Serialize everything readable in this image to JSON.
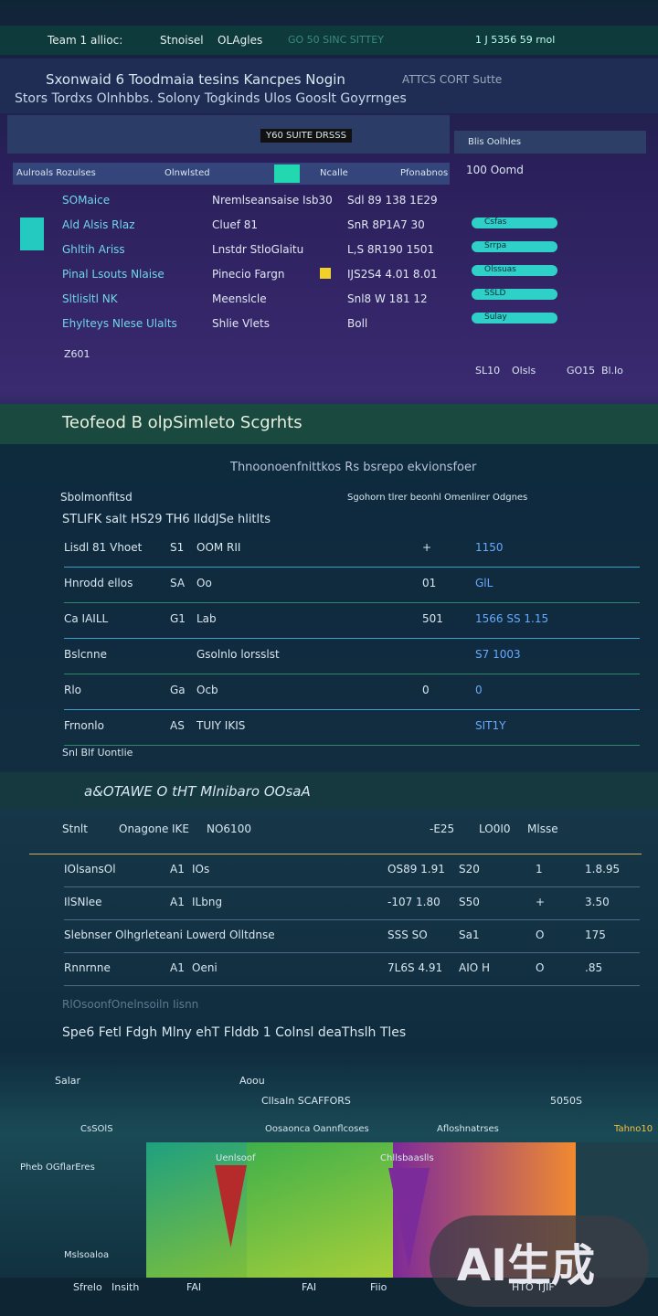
{
  "top_bar": {
    "items": [
      "Team 1 allioc:",
      "Stnoisel",
      "OLAgles",
      "GO 50 SINC SITTEY"
    ],
    "status": "1 J 5356 59 rnol"
  },
  "header": {
    "title": "Sxonwaid 6 Toodmaia tesins Kancpes Nogin",
    "tag": "ATTCS CORT Sutte",
    "subtitle": "Stors Tordxs Olnhbbs. Solony Togkinds Ulos Gooslt Goyrrnges"
  },
  "banner": {
    "label": "Y60 SUITE DRSSS",
    "side_title": "Blis Oolhles"
  },
  "table1": {
    "headers": [
      "Aulroals Rozulses",
      "Olnwlsted",
      "Ncalle",
      "Pfonabnos"
    ],
    "side_header": "100 Oomd",
    "rows": [
      [
        "SOMaice",
        "Nremlseansaise Isb30",
        "Sdl 89 138 1E29"
      ],
      [
        "Ald Alsis Rlaz",
        "Cluef 81",
        "SnR 8P1A7 30"
      ],
      [
        "Ghltih Ariss",
        "Lnstdr StloGlaitu",
        "L,S 8R190 1501"
      ],
      [
        "Pinal Lsouts Nlaise",
        "Pinecio Fargn",
        "IJS2S4 4.01 8.01"
      ],
      [
        "Sltlisltl NK",
        "Meenslcle",
        "Snl8 W 181 12"
      ],
      [
        "Ehylteys Nlese Ulalts",
        "Shlie Vlets",
        "Boll"
      ]
    ],
    "side_rows": [
      "Csfas",
      "Srrpa",
      "Olssuas",
      "SSLD",
      "Sulay"
    ],
    "footer": [
      "Z601",
      "SL10",
      "Olsls",
      "GO15",
      "Bl.lo"
    ]
  },
  "section_band": {
    "title": "Teofeod B olpSimleto Scgrhts"
  },
  "table2": {
    "title": "Thnoonoenfnittkos Rs bsrepo ekvionsfoer",
    "subtitle": "Sbolmonfitsd",
    "right_note": "Sgohorn tlrer beonhl Omenlirer Odgnes",
    "headline": "STLIFK salt HS29 TH6 IlddJSe hlitlts",
    "rows": [
      [
        "Lisdl 81 Vhoet",
        "S1",
        "OOM RII",
        "+",
        "1150"
      ],
      [
        "Hnrodd ellos",
        "SA",
        "Oo",
        "01",
        "GlL"
      ],
      [
        "Ca IAILL",
        "G1",
        "Lab",
        "501",
        "1566 SS 1.15"
      ],
      [
        "Bslcnne",
        "",
        "Gsolnlo lorsslst",
        "",
        "S7 1003"
      ],
      [
        "Rlo",
        "Ga",
        "Ocb",
        "0",
        "0"
      ],
      [
        "Frnonlo",
        "AS",
        "TUIY IKIS",
        "",
        "SIT1Y"
      ]
    ],
    "footer": "Snl Blf Uontlie"
  },
  "table3": {
    "title": "a&OTAWE O tHT Mlnibaro OOsaA",
    "headers": [
      "Stnlt",
      "Onagone",
      "IKE",
      "NO6100",
      "-E25",
      "LO0I0",
      "Mlsse"
    ],
    "rows": [
      [
        "IOlsansOl",
        "A1",
        "IOs",
        "OS89 1.91",
        "S20",
        "1",
        "1.8.95"
      ],
      [
        "IlSNlee",
        "A1",
        "ILbng",
        "-107 1.80",
        "S50",
        "+",
        "3.50"
      ],
      [
        "Slebnser Olhgrleteani Lowerd Olltdnse",
        "",
        "",
        "SSS SO",
        "Sa1",
        "O",
        "175"
      ],
      [
        "Rnnrnne",
        "A1",
        "Oeni",
        "7L6S 4.91",
        "AIO H",
        "O",
        ".85"
      ]
    ],
    "note": "RlOsoonfOnelnsoiln Iisnn",
    "footer": "Spe6 Fetl Fdgh Mlny ehT Flddb 1 Colnsl deaThslh Tles"
  },
  "bottom": {
    "top_labels": [
      "Salar",
      "Aoou",
      "Cllsaln SCAFFORS",
      "5050S"
    ],
    "sub_labels": [
      "CsSOlS",
      "Oosaonca Oannflcoses",
      "Afloshnatrses",
      "Tahno10"
    ],
    "chart_labels": [
      "Pheb OGflarEres",
      "Uenlsoof",
      "Chllsbaaslls",
      "Mslsoaloa"
    ],
    "footer": [
      "Sfrelo",
      "Insith",
      "FAI",
      "FAI",
      "Fiio",
      "HTO TJIF"
    ],
    "watermark": "AI生成"
  }
}
